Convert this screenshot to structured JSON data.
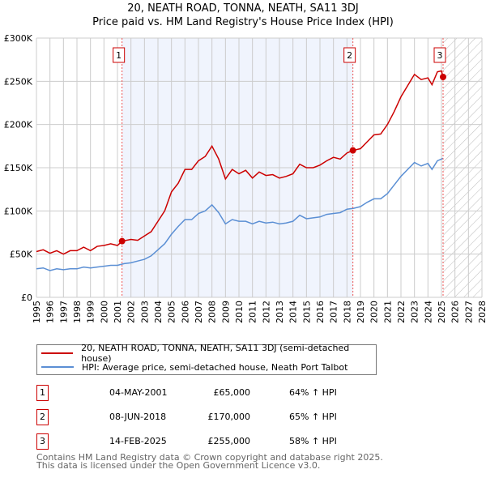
{
  "chart_data": {
    "type": "line",
    "title": "20, NEATH ROAD, TONNA, NEATH, SA11 3DJ",
    "subtitle": "Price paid vs. HM Land Registry's House Price Index (HPI)",
    "xlim": [
      1995,
      2028
    ],
    "ylim": [
      0,
      300000
    ],
    "x_ticks": [
      "1995",
      "1996",
      "1997",
      "1998",
      "1999",
      "2000",
      "2001",
      "2002",
      "2003",
      "2004",
      "2005",
      "2006",
      "2007",
      "2008",
      "2009",
      "2010",
      "2011",
      "2012",
      "2013",
      "2014",
      "2015",
      "2016",
      "2017",
      "2018",
      "2019",
      "2020",
      "2021",
      "2022",
      "2023",
      "2024",
      "2025",
      "2026",
      "2027",
      "2028"
    ],
    "y_ticks": [
      {
        "v": 0,
        "label": "£0"
      },
      {
        "v": 50000,
        "label": "£50K"
      },
      {
        "v": 100000,
        "label": "£100K"
      },
      {
        "v": 150000,
        "label": "£150K"
      },
      {
        "v": 200000,
        "label": "£200K"
      },
      {
        "v": 250000,
        "label": "£250K"
      },
      {
        "v": 300000,
        "label": "£300K"
      }
    ],
    "grid": true,
    "shaded_range": [
      2001.34,
      2018.44
    ],
    "forecast_hatch_from": 2025.12,
    "series": [
      {
        "name": "20, NEATH ROAD, TONNA, NEATH, SA11 3DJ (semi-detached house)",
        "color": "#cc0000",
        "x": [
          1995,
          1995.5,
          1996,
          1996.5,
          1997,
          1997.5,
          1998,
          1998.5,
          1999,
          1999.5,
          2000,
          2000.5,
          2001,
          2001.34,
          2002,
          2002.5,
          2003,
          2003.5,
          2004,
          2004.5,
          2005,
          2005.5,
          2006,
          2006.5,
          2007,
          2007.5,
          2008,
          2008.5,
          2009,
          2009.5,
          2010,
          2010.5,
          2011,
          2011.5,
          2012,
          2012.5,
          2013,
          2013.5,
          2014,
          2014.5,
          2015,
          2015.5,
          2016,
          2016.5,
          2017,
          2017.5,
          2018,
          2018.44,
          2019,
          2019.5,
          2020,
          2020.5,
          2021,
          2021.5,
          2022,
          2022.5,
          2023,
          2023.5,
          2024,
          2024.3,
          2024.7,
          2025,
          2025.12
        ],
        "y": [
          53000,
          55000,
          51000,
          54000,
          50000,
          54000,
          54000,
          58000,
          54000,
          59000,
          60000,
          62000,
          60000,
          65000,
          67000,
          66000,
          71000,
          76000,
          88000,
          100000,
          122000,
          132000,
          148000,
          148000,
          158000,
          163000,
          175000,
          160000,
          137000,
          148000,
          143000,
          147000,
          138000,
          145000,
          141000,
          142000,
          138000,
          140000,
          143000,
          154000,
          150000,
          150000,
          153000,
          158000,
          162000,
          160000,
          167000,
          170000,
          172000,
          180000,
          188000,
          189000,
          200000,
          215000,
          232000,
          245000,
          258000,
          252000,
          254000,
          246000,
          261000,
          262000,
          255000
        ]
      },
      {
        "name": "HPI: Average price, semi-detached house, Neath Port Talbot",
        "color": "#5b8fd4",
        "x": [
          1995,
          1995.5,
          1996,
          1996.5,
          1997,
          1997.5,
          1998,
          1998.5,
          1999,
          1999.5,
          2000,
          2000.5,
          2001,
          2001.5,
          2002,
          2002.5,
          2003,
          2003.5,
          2004,
          2004.5,
          2005,
          2005.5,
          2006,
          2006.5,
          2007,
          2007.5,
          2008,
          2008.5,
          2009,
          2009.5,
          2010,
          2010.5,
          2011,
          2011.5,
          2012,
          2012.5,
          2013,
          2013.5,
          2014,
          2014.5,
          2015,
          2015.5,
          2016,
          2016.5,
          2017,
          2017.5,
          2018,
          2018.5,
          2019,
          2019.5,
          2020,
          2020.5,
          2021,
          2021.5,
          2022,
          2022.5,
          2023,
          2023.5,
          2024,
          2024.3,
          2024.7,
          2025,
          2025.12
        ],
        "y": [
          33000,
          34000,
          31000,
          33000,
          32000,
          33000,
          33000,
          35000,
          34000,
          35000,
          36000,
          37000,
          37000,
          39000,
          40000,
          42000,
          44000,
          48000,
          55000,
          62000,
          73000,
          82000,
          90000,
          90000,
          97000,
          100000,
          107000,
          98000,
          85000,
          90000,
          88000,
          88000,
          85000,
          88000,
          86000,
          87000,
          85000,
          86000,
          88000,
          95000,
          91000,
          92000,
          93000,
          96000,
          97000,
          98000,
          102000,
          103000,
          105000,
          110000,
          114000,
          114000,
          120000,
          130000,
          140000,
          148000,
          156000,
          152000,
          155000,
          148000,
          158000,
          160000,
          161000
        ]
      }
    ],
    "markers": [
      {
        "label": "1",
        "x": 2001.34,
        "y": 65000
      },
      {
        "label": "2",
        "x": 2018.44,
        "y": 170000
      },
      {
        "label": "3",
        "x": 2025.12,
        "y": 255000
      }
    ]
  },
  "legend": [
    "20, NEATH ROAD, TONNA, NEATH, SA11 3DJ (semi-detached house)",
    "HPI: Average price, semi-detached house, Neath Port Talbot"
  ],
  "transactions": [
    {
      "num": "1",
      "date": "04-MAY-2001",
      "price": "£65,000",
      "hpi": "64% ↑ HPI"
    },
    {
      "num": "2",
      "date": "08-JUN-2018",
      "price": "£170,000",
      "hpi": "65% ↑ HPI"
    },
    {
      "num": "3",
      "date": "14-FEB-2025",
      "price": "£255,000",
      "hpi": "58% ↑ HPI"
    }
  ],
  "footer": [
    "Contains HM Land Registry data © Crown copyright and database right 2025.",
    "This data is licensed under the Open Government Licence v3.0."
  ]
}
